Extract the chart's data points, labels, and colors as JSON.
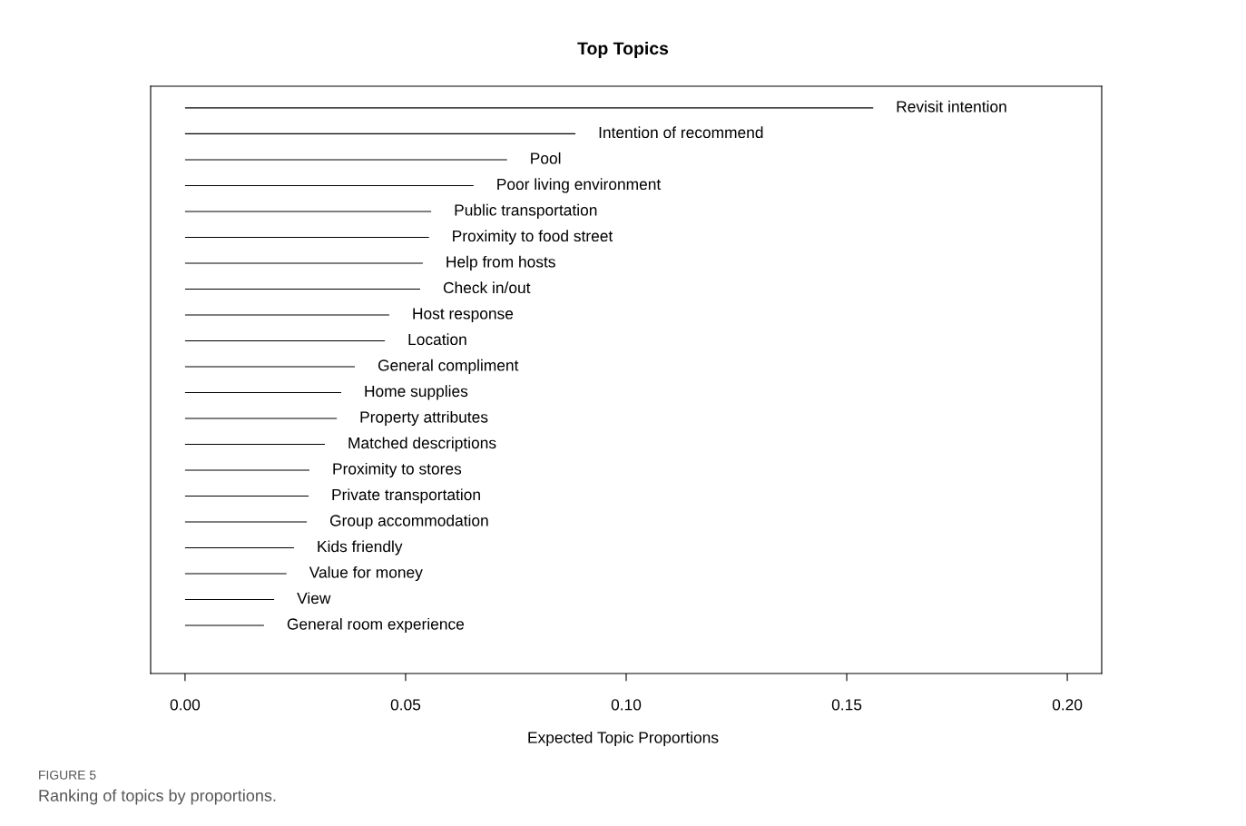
{
  "chart_data": {
    "type": "bar",
    "orientation": "horizontal",
    "title": "Top Topics",
    "xlabel": "Expected Topic Proportions",
    "categories": [
      "Revisit intention",
      "Intention of recommend",
      "Pool",
      "Poor living environment",
      "Public transportation",
      "Proximity to food street",
      "Help from hosts",
      "Check in/out",
      "Host response",
      "Location",
      "General compliment",
      "Home supplies",
      "Property attributes",
      "Matched descriptions",
      "Proximity to stores",
      "Private transportation",
      "Group accommodation",
      "Kids friendly",
      "Value for money",
      "View",
      "General room experience"
    ],
    "values": [
      0.156,
      0.0885,
      0.073,
      0.0654,
      0.0558,
      0.0553,
      0.0539,
      0.0533,
      0.0463,
      0.0453,
      0.0385,
      0.0354,
      0.0344,
      0.0317,
      0.0282,
      0.028,
      0.0276,
      0.0247,
      0.023,
      0.0202,
      0.0179
    ],
    "color": "#000000",
    "xlim": [
      -0.0078,
      0.2078
    ],
    "xticks": [
      {
        "value": 0,
        "label": "0.00"
      },
      {
        "value": 0.05,
        "label": "0.05"
      },
      {
        "value": 0.1,
        "label": "0.10"
      },
      {
        "value": 0.15,
        "label": "0.15"
      },
      {
        "value": 0.2,
        "label": "0.20"
      }
    ],
    "tick_labels": "x",
    "grid": false,
    "legend": false,
    "annotations": [
      "FIGURE 5",
      "Ranking of topics by proportions."
    ]
  }
}
